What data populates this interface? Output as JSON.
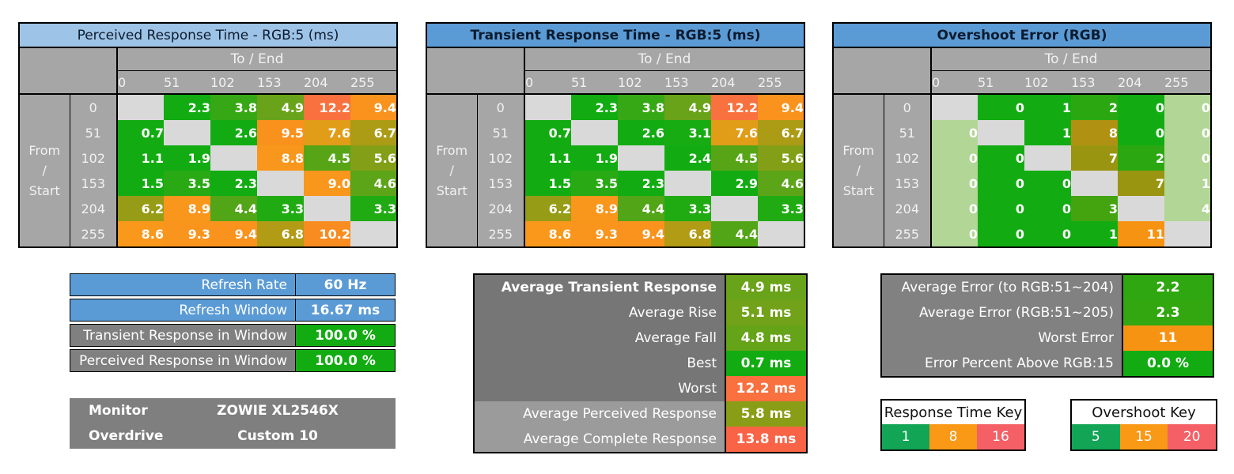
{
  "chart_data": {
    "type": "heatmap",
    "description": "Monitor response time and overshoot test result tables",
    "levels": [
      "0",
      "51",
      "102",
      "153",
      "204",
      "255"
    ],
    "col_group_label": "To / End",
    "row_group_label_lines": [
      "From",
      "/",
      "Start"
    ],
    "matrices": [
      {
        "name": "perceived-response-matrix",
        "title": "Perceived Response Time - RGB:5 (ms)",
        "title_bg": "#9DC3E6",
        "title_bold": false,
        "scale": "response",
        "decimals": 1,
        "pale_columns": [],
        "rows": [
          [
            null,
            2.3,
            3.8,
            4.9,
            12.2,
            9.4
          ],
          [
            0.7,
            null,
            2.6,
            9.5,
            7.6,
            6.7
          ],
          [
            1.1,
            1.9,
            null,
            8.8,
            4.5,
            5.6
          ],
          [
            1.5,
            3.5,
            2.3,
            null,
            9.0,
            4.6
          ],
          [
            6.2,
            8.9,
            4.4,
            3.3,
            null,
            3.3
          ],
          [
            8.6,
            9.3,
            9.4,
            6.8,
            10.2,
            null
          ]
        ]
      },
      {
        "name": "transient-response-matrix",
        "title": "Transient Response Time - RGB:5 (ms)",
        "title_bg": "#5B9BD5",
        "title_bold": true,
        "scale": "response",
        "decimals": 1,
        "pale_columns": [],
        "rows": [
          [
            null,
            2.3,
            3.8,
            4.9,
            12.2,
            9.4
          ],
          [
            0.7,
            null,
            2.6,
            3.1,
            7.6,
            6.7
          ],
          [
            1.1,
            1.9,
            null,
            2.4,
            4.5,
            5.6
          ],
          [
            1.5,
            3.5,
            2.3,
            null,
            2.9,
            4.6
          ],
          [
            6.2,
            8.9,
            4.4,
            3.3,
            null,
            3.3
          ],
          [
            8.6,
            9.3,
            9.4,
            6.8,
            4.4,
            null
          ]
        ]
      },
      {
        "name": "overshoot-error-matrix",
        "title": "Overshoot Error (RGB)",
        "title_bg": "#5B9BD5",
        "title_bold": true,
        "scale": "overshoot",
        "decimals": 0,
        "pale_columns": [
          0,
          5
        ],
        "rows": [
          [
            null,
            0,
            1,
            2,
            0,
            0
          ],
          [
            0,
            null,
            1,
            8,
            0,
            0
          ],
          [
            0,
            0,
            null,
            7,
            2,
            0
          ],
          [
            0,
            0,
            0,
            null,
            7,
            1
          ],
          [
            0,
            0,
            0,
            3,
            null,
            4
          ],
          [
            0,
            0,
            0,
            1,
            11,
            null
          ]
        ]
      }
    ],
    "refresh_summary": {
      "rows": [
        {
          "label": "Refresh Rate",
          "value": "60 Hz",
          "label_bg": "#5B9BD5",
          "value_bg": "#5B9BD5"
        },
        {
          "label": "Refresh Window",
          "value": "16.67 ms",
          "label_bg": "#5B9BD5",
          "value_bg": "#5B9BD5"
        },
        {
          "label": "Transient Response in Window",
          "value": "100.0 %",
          "label_bg": "#808080",
          "value_bg": "#12AC12"
        },
        {
          "label": "Perceived Response in Window",
          "value": "100.0 %",
          "label_bg": "#808080",
          "value_bg": "#12AC12"
        }
      ]
    },
    "monitor_info": {
      "rows": [
        {
          "label": "Monitor",
          "value": "ZOWIE XL2546X"
        },
        {
          "label": "Overdrive",
          "value": "Custom 10"
        }
      ]
    },
    "response_summary": {
      "rows": [
        {
          "label": "Average Transient Response",
          "value": "4.9 ms",
          "v": 4.9,
          "scale": "response",
          "label_bold": true,
          "label_bg": "#767676"
        },
        {
          "label": "Average Rise",
          "value": "5.1 ms",
          "v": 5.1,
          "scale": "response",
          "label_bold": false,
          "label_bg": "#767676"
        },
        {
          "label": "Average Fall",
          "value": "4.8 ms",
          "v": 4.8,
          "scale": "response",
          "label_bold": false,
          "label_bg": "#767676"
        },
        {
          "label": "Best",
          "value": "0.7 ms",
          "v": 0.7,
          "scale": "response",
          "label_bold": false,
          "label_bg": "#767676"
        },
        {
          "label": "Worst",
          "value": "12.2 ms",
          "v": 12.2,
          "scale": "response",
          "label_bold": false,
          "label_bg": "#767676"
        },
        {
          "label": "Average Perceived Response",
          "value": "5.8 ms",
          "v": 5.8,
          "scale": "response",
          "label_bold": false,
          "label_bg": "#9B9B9B"
        },
        {
          "label": "Average Complete Response",
          "value": "13.8 ms",
          "v": 13.8,
          "scale": "response",
          "label_bold": false,
          "label_bg": "#9B9B9B"
        }
      ]
    },
    "error_summary": {
      "rows": [
        {
          "label": "Average Error (to RGB:51~204)",
          "value": "2.2",
          "v": 2.2,
          "scale": "overshoot",
          "label_bold": false,
          "label_bg": "#818181"
        },
        {
          "label": "Average Error (RGB:51~205)",
          "value": "2.3",
          "v": 2.3,
          "scale": "overshoot",
          "label_bold": false,
          "label_bg": "#818181"
        },
        {
          "label": "Worst Error",
          "value": "11",
          "v": 11,
          "scale": "overshoot",
          "label_bold": false,
          "label_bg": "#818181"
        },
        {
          "label": "Error Percent Above RGB:15",
          "value": "0.0 %",
          "v": 0,
          "scale": "overshoot",
          "label_bold": false,
          "label_bg": "#818181"
        }
      ]
    },
    "keys": [
      {
        "title": "Response Time Key",
        "entries": [
          {
            "label": "1",
            "color": "#12A556"
          },
          {
            "label": "8",
            "color": "#F99916"
          },
          {
            "label": "16",
            "color": "#F46066"
          }
        ]
      },
      {
        "title": "Overshoot Key",
        "entries": [
          {
            "label": "5",
            "color": "#12A556"
          },
          {
            "label": "15",
            "color": "#F99916"
          },
          {
            "label": "20",
            "color": "#F46066"
          }
        ]
      }
    ]
  },
  "colors": {
    "response_scale_anchors": [
      [
        0,
        "#12AC12"
      ],
      [
        3,
        "#12AC12"
      ],
      [
        5,
        "#6EA219"
      ],
      [
        6.5,
        "#A09B14"
      ],
      [
        8,
        "#F99C1A"
      ],
      [
        10,
        "#F98F1E"
      ],
      [
        12,
        "#F9733E"
      ],
      [
        16,
        "#F95050"
      ]
    ],
    "overshoot_scale_anchors": [
      [
        0,
        "#12AC12"
      ],
      [
        1,
        "#12AC12"
      ],
      [
        3,
        "#43A40F"
      ],
      [
        8,
        "#B09112"
      ],
      [
        11,
        "#F79312"
      ],
      [
        15,
        "#F99C1C"
      ],
      [
        20,
        "#F95050"
      ]
    ],
    "pale_cell": "#B1D696",
    "blank_cell": "#D9D9D9",
    "header_gray": "#A6A6A6",
    "header_text": "#F2F2F2",
    "cell_text": "#FFFFFF"
  }
}
